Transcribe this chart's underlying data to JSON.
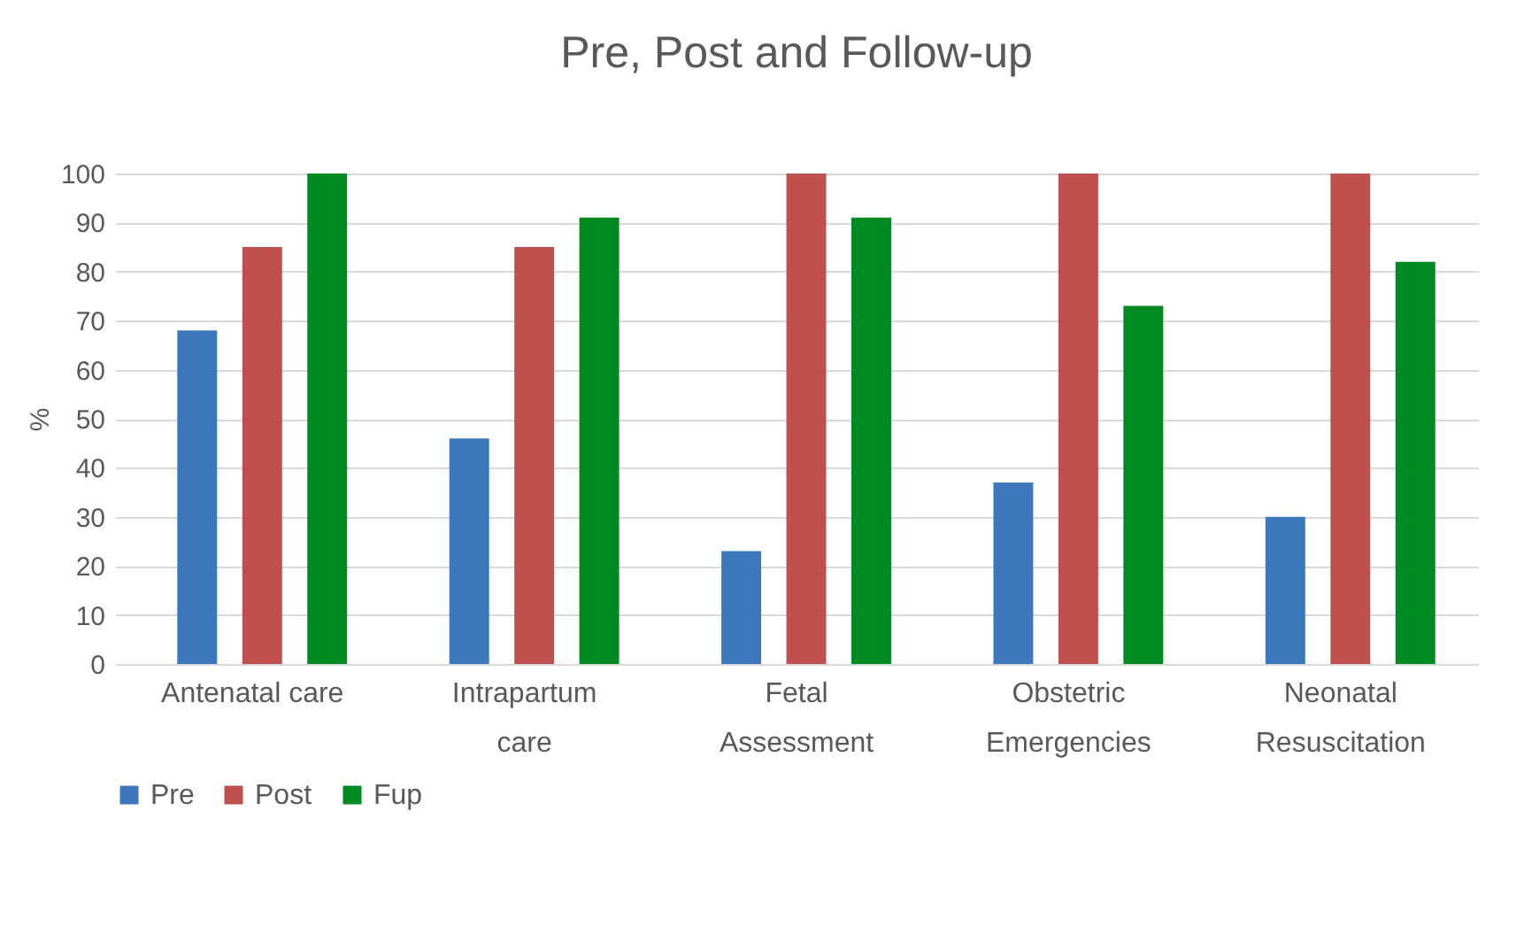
{
  "chart_data": {
    "type": "bar",
    "title": "Pre, Post and Follow-up",
    "ylabel": "%",
    "categories": [
      "Antenatal care",
      "Intrapartum care",
      "Fetal Assessment",
      "Obstetric Emergencies",
      "Neonatal Resuscitation"
    ],
    "series": [
      {
        "name": "Pre",
        "color": "#3d78bd",
        "values": [
          68,
          46,
          23,
          37,
          30
        ]
      },
      {
        "name": "Post",
        "color": "#c0504d",
        "values": [
          85,
          85,
          100,
          100,
          100
        ]
      },
      {
        "name": "Fup",
        "color": "#008a22",
        "values": [
          100,
          91,
          91,
          73,
          82
        ]
      }
    ],
    "ylim": [
      0,
      100
    ],
    "yticks": [
      0,
      10,
      20,
      30,
      40,
      50,
      60,
      70,
      80,
      90,
      100
    ],
    "grid": "y",
    "legend": "bottom"
  }
}
